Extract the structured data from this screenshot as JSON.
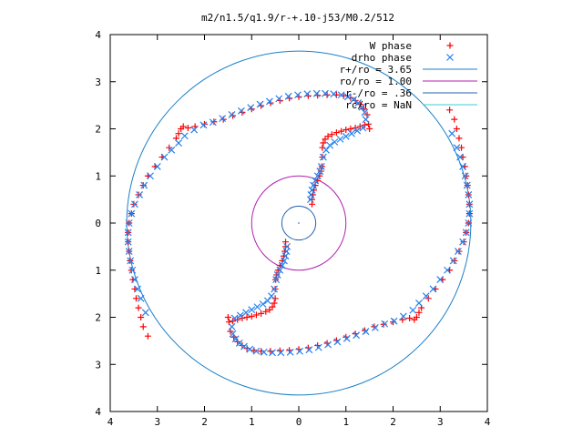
{
  "chart_data": {
    "type": "scatter",
    "title": "m2/n1.5/q1.9/r-+.10-j53/M0.2/512",
    "xlabel": "",
    "ylabel": "",
    "xlim": [
      -4,
      4
    ],
    "ylim": [
      -4,
      4
    ],
    "x_tick_labels": [
      "4",
      "3",
      "2",
      "1",
      "0",
      "1",
      "2",
      "3",
      "4"
    ],
    "y_tick_labels": [
      "4",
      "3",
      "2",
      "1",
      "0",
      "1",
      "2",
      "3",
      "4"
    ],
    "grid": false,
    "legend_position": "top-right",
    "series": [
      {
        "name": "W phase",
        "kind": "points",
        "marker": "plus",
        "color": "#ff0000",
        "x": [
          0.28,
          0.28,
          0.3,
          0.32,
          0.35,
          0.4,
          0.44,
          0.47,
          0.49,
          0.5,
          0.5,
          0.52,
          0.56,
          0.62,
          0.7,
          0.8,
          0.9,
          1.0,
          1.1,
          1.2,
          1.3,
          1.4,
          1.48,
          1.5,
          1.45,
          1.38,
          1.3,
          1.2,
          1.1,
          0.95,
          0.8,
          0.6,
          0.4,
          0.2,
          0.0,
          -0.2,
          -0.4,
          -0.6,
          -0.8,
          -1.0,
          -1.2,
          -1.4,
          -1.6,
          -1.8,
          -2.0,
          -2.2,
          -2.35,
          -2.45,
          -2.5,
          -2.55,
          -2.6,
          -2.75,
          -2.9,
          -3.05,
          -3.2,
          -3.3,
          -3.4,
          -3.5,
          -3.55,
          -3.6,
          -3.62,
          -3.62,
          -3.6,
          -3.58,
          -3.55,
          -3.52,
          -3.48,
          -3.45,
          -3.4,
          -3.35,
          -3.3,
          -3.2,
          -0.28,
          -0.28,
          -0.3,
          -0.32,
          -0.35,
          -0.4,
          -0.44,
          -0.47,
          -0.49,
          -0.5,
          -0.5,
          -0.52,
          -0.56,
          -0.62,
          -0.7,
          -0.8,
          -0.9,
          -1.0,
          -1.1,
          -1.2,
          -1.3,
          -1.4,
          -1.48,
          -1.5,
          -1.45,
          -1.38,
          -1.3,
          -1.2,
          -1.1,
          -0.95,
          -0.8,
          -0.6,
          -0.4,
          -0.2,
          0.0,
          0.2,
          0.4,
          0.6,
          0.8,
          1.0,
          1.2,
          1.4,
          1.6,
          1.8,
          2.0,
          2.2,
          2.35,
          2.45,
          2.5,
          2.55,
          2.6,
          2.75,
          2.9,
          3.05,
          3.2,
          3.3,
          3.4,
          3.5,
          3.55,
          3.6,
          3.62,
          3.62,
          3.6,
          3.58,
          3.55,
          3.52,
          3.48,
          3.45,
          3.4,
          3.35,
          3.3,
          3.2
        ],
        "y": [
          0.4,
          0.5,
          0.6,
          0.7,
          0.8,
          0.9,
          1.0,
          1.1,
          1.2,
          1.4,
          1.6,
          1.7,
          1.78,
          1.84,
          1.88,
          1.92,
          1.95,
          1.98,
          2.0,
          2.02,
          2.05,
          2.08,
          2.1,
          2.0,
          2.3,
          2.42,
          2.52,
          2.6,
          2.66,
          2.7,
          2.72,
          2.72,
          2.71,
          2.7,
          2.68,
          2.65,
          2.6,
          2.55,
          2.49,
          2.42,
          2.35,
          2.28,
          2.2,
          2.15,
          2.1,
          2.05,
          2.02,
          2.05,
          2.0,
          1.9,
          1.8,
          1.6,
          1.4,
          1.2,
          1.0,
          0.8,
          0.6,
          0.4,
          0.2,
          0.0,
          -0.2,
          -0.4,
          -0.6,
          -0.8,
          -1.0,
          -1.2,
          -1.4,
          -1.6,
          -1.8,
          -2.0,
          -2.2,
          -2.4,
          -0.4,
          -0.5,
          -0.6,
          -0.7,
          -0.8,
          -0.9,
          -1.0,
          -1.1,
          -1.2,
          -1.4,
          -1.6,
          -1.7,
          -1.78,
          -1.84,
          -1.88,
          -1.92,
          -1.95,
          -1.98,
          -2.0,
          -2.02,
          -2.05,
          -2.08,
          -2.1,
          -2.0,
          -2.3,
          -2.42,
          -2.52,
          -2.6,
          -2.66,
          -2.7,
          -2.72,
          -2.72,
          -2.71,
          -2.7,
          -2.68,
          -2.65,
          -2.6,
          -2.55,
          -2.49,
          -2.42,
          -2.35,
          -2.28,
          -2.2,
          -2.15,
          -2.1,
          -2.05,
          -2.02,
          -2.05,
          -2.0,
          -1.9,
          -1.8,
          -1.6,
          -1.4,
          -1.2,
          -1.0,
          -0.8,
          -0.6,
          -0.4,
          -0.2,
          0.0,
          0.2,
          0.4,
          0.6,
          0.8,
          1.0,
          1.2,
          1.4,
          1.6,
          1.8,
          2.0,
          2.2,
          2.4
        ]
      },
      {
        "name": "drho phase",
        "kind": "points",
        "marker": "cross",
        "color": "#2080f0",
        "x": [
          0.25,
          0.26,
          0.28,
          0.31,
          0.35,
          0.4,
          0.45,
          0.48,
          0.52,
          0.58,
          0.66,
          0.76,
          0.88,
          1.0,
          1.12,
          1.24,
          1.36,
          1.42,
          1.4,
          1.34,
          1.26,
          1.16,
          1.04,
          0.9,
          0.74,
          0.56,
          0.38,
          0.18,
          -0.02,
          -0.22,
          -0.42,
          -0.62,
          -0.82,
          -1.02,
          -1.22,
          -1.42,
          -1.62,
          -1.82,
          -2.02,
          -2.22,
          -2.42,
          -2.55,
          -2.7,
          -2.85,
          -3.0,
          -3.15,
          -3.28,
          -3.38,
          -3.48,
          -3.55,
          -3.6,
          -3.62,
          -3.62,
          -3.6,
          -3.57,
          -3.53,
          -3.48,
          -3.42,
          -3.35,
          -3.25,
          -0.25,
          -0.26,
          -0.28,
          -0.31,
          -0.35,
          -0.4,
          -0.45,
          -0.48,
          -0.52,
          -0.58,
          -0.66,
          -0.76,
          -0.88,
          -1.0,
          -1.12,
          -1.24,
          -1.36,
          -1.42,
          -1.4,
          -1.34,
          -1.26,
          -1.16,
          -1.04,
          -0.9,
          -0.74,
          -0.56,
          -0.38,
          -0.18,
          0.02,
          0.22,
          0.42,
          0.62,
          0.82,
          1.02,
          1.22,
          1.42,
          1.62,
          1.82,
          2.02,
          2.22,
          2.42,
          2.55,
          2.7,
          2.85,
          3.0,
          3.15,
          3.28,
          3.38,
          3.48,
          3.55,
          3.6,
          3.62,
          3.62,
          3.6,
          3.57,
          3.53,
          3.48,
          3.42,
          3.35,
          3.25
        ],
        "y": [
          0.5,
          0.6,
          0.7,
          0.8,
          0.9,
          1.0,
          1.1,
          1.2,
          1.4,
          1.55,
          1.65,
          1.72,
          1.78,
          1.84,
          1.9,
          1.96,
          2.02,
          2.2,
          2.35,
          2.46,
          2.55,
          2.62,
          2.68,
          2.72,
          2.74,
          2.75,
          2.75,
          2.74,
          2.72,
          2.69,
          2.64,
          2.58,
          2.52,
          2.45,
          2.38,
          2.3,
          2.22,
          2.14,
          2.08,
          1.98,
          1.85,
          1.7,
          1.55,
          1.4,
          1.2,
          1.0,
          0.8,
          0.6,
          0.4,
          0.2,
          0.0,
          -0.2,
          -0.4,
          -0.6,
          -0.8,
          -1.0,
          -1.2,
          -1.4,
          -1.6,
          -1.9,
          -0.5,
          -0.6,
          -0.7,
          -0.8,
          -0.9,
          -1.0,
          -1.1,
          -1.2,
          -1.4,
          -1.55,
          -1.65,
          -1.72,
          -1.78,
          -1.84,
          -1.9,
          -1.96,
          -2.02,
          -2.2,
          -2.35,
          -2.46,
          -2.55,
          -2.62,
          -2.68,
          -2.72,
          -2.74,
          -2.75,
          -2.75,
          -2.74,
          -2.72,
          -2.69,
          -2.64,
          -2.58,
          -2.52,
          -2.45,
          -2.38,
          -2.3,
          -2.22,
          -2.14,
          -2.08,
          -1.98,
          -1.85,
          -1.7,
          -1.55,
          -1.4,
          -1.2,
          -1.0,
          -0.8,
          -0.6,
          -0.4,
          -0.2,
          0.0,
          0.2,
          0.4,
          0.6,
          0.8,
          1.0,
          1.2,
          1.4,
          1.6,
          1.9
        ]
      },
      {
        "name": "r+/ro = 3.65",
        "kind": "circle",
        "radius": 3.65,
        "color": "#1a80c8"
      },
      {
        "name": "ro/ro = 1.00",
        "kind": "circle",
        "radius": 1.0,
        "color": "#b020b0"
      },
      {
        "name": "r-/ro = .36",
        "kind": "circle",
        "radius": 0.36,
        "color": "#2060b0"
      },
      {
        "name": "rc/ro = NaN",
        "kind": "circle",
        "radius": null,
        "color": "#40c8d8"
      }
    ]
  }
}
